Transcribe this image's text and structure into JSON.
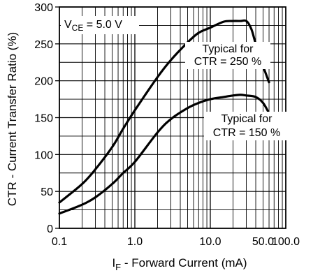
{
  "chart_data": {
    "type": "line",
    "xlabel": {
      "main": "I",
      "sub": "F",
      "rest": " - Forward Current (mA)"
    },
    "ylabel": "CTR - Current Transfer Ratio (%)",
    "xscale": "log",
    "xlim": [
      0.1,
      100
    ],
    "ylim": [
      0,
      300
    ],
    "grid": true,
    "x_ticks": [
      {
        "value": 0.1,
        "label": "0.1"
      },
      {
        "value": 1,
        "label": "1.0"
      },
      {
        "value": 10,
        "label": "10.0"
      },
      {
        "value": 50,
        "label": "50.0"
      },
      {
        "value": 100,
        "label": "100.0"
      }
    ],
    "y_ticks": [
      0,
      50,
      100,
      150,
      200,
      250,
      300
    ],
    "condition": {
      "main": "V",
      "sub": "CE",
      "rest": " = 5.0 V"
    },
    "series": [
      {
        "name": "Typical for CTR = 250 %",
        "label_lines": [
          "Typical for",
          "CTR = 250 %"
        ],
        "x": [
          0.1,
          0.2,
          0.3,
          0.5,
          0.7,
          1.0,
          2.0,
          3.0,
          5.0,
          7.0,
          10.0,
          15.0,
          20.0,
          25.0,
          30.0,
          35.0,
          40.0,
          50.0,
          60.0
        ],
        "y": [
          35,
          60,
          80,
          110,
          135,
          160,
          205,
          228,
          252,
          265,
          272,
          280,
          281,
          281,
          281,
          270,
          250,
          220,
          198
        ]
      },
      {
        "name": "Typical for CTR = 150 %",
        "label_lines": [
          "Typical for",
          "CTR = 150 %"
        ],
        "x": [
          0.1,
          0.2,
          0.3,
          0.5,
          0.7,
          1.0,
          2.0,
          3.0,
          5.0,
          7.0,
          10.0,
          15.0,
          20.0,
          25.0,
          30.0,
          40.0,
          50.0,
          60.0
        ],
        "y": [
          20,
          32,
          42,
          60,
          75,
          90,
          130,
          148,
          163,
          170,
          175,
          178,
          180,
          181,
          180,
          178,
          170,
          156
        ]
      }
    ]
  }
}
